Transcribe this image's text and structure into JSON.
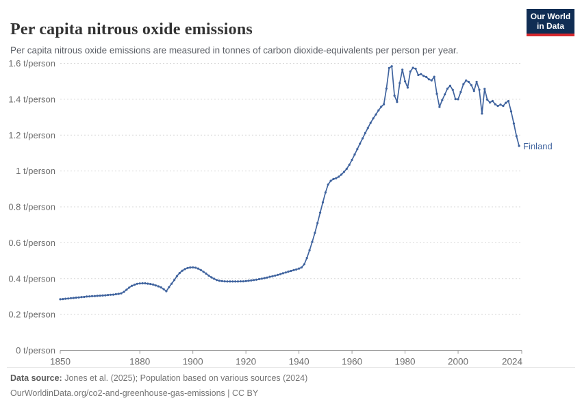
{
  "header": {
    "title": "Per capita nitrous oxide emissions",
    "subtitle": "Per capita nitrous oxide emissions are measured in tonnes of carbon dioxide-equivalents per person per year.",
    "logo_line1": "Our World",
    "logo_line2": "in Data"
  },
  "chart_data": {
    "type": "line",
    "title": "Per capita nitrous oxide emissions",
    "unit": "t/person",
    "xlim": [
      1850,
      2024
    ],
    "ylim": [
      0,
      1.6
    ],
    "grid": "horizontal-dashed",
    "legend_position": "end-of-line-label",
    "x_ticks": [
      {
        "value": 1850,
        "label": "1850"
      },
      {
        "value": 1880,
        "label": "1880"
      },
      {
        "value": 1900,
        "label": "1900"
      },
      {
        "value": 1920,
        "label": "1920"
      },
      {
        "value": 1940,
        "label": "1940"
      },
      {
        "value": 1960,
        "label": "1960"
      },
      {
        "value": 1980,
        "label": "1980"
      },
      {
        "value": 2000,
        "label": "2000"
      },
      {
        "value": 2024,
        "label": "2024"
      }
    ],
    "y_ticks": [
      {
        "value": 0,
        "label": "0 t/person"
      },
      {
        "value": 0.2,
        "label": "0.2 t/person"
      },
      {
        "value": 0.4,
        "label": "0.4 t/person"
      },
      {
        "value": 0.6,
        "label": "0.6 t/person"
      },
      {
        "value": 0.8,
        "label": "0.8 t/person"
      },
      {
        "value": 1,
        "label": "1 t/person"
      },
      {
        "value": 1.2,
        "label": "1.2 t/person"
      },
      {
        "value": 1.4,
        "label": "1.4 t/person"
      },
      {
        "value": 1.6,
        "label": "1.6 t/person"
      }
    ],
    "series": [
      {
        "name": "Finland",
        "start_year": 1850,
        "end_year": 2023,
        "values": [
          0.285,
          0.286,
          0.288,
          0.289,
          0.291,
          0.292,
          0.294,
          0.295,
          0.297,
          0.298,
          0.3,
          0.301,
          0.302,
          0.303,
          0.304,
          0.305,
          0.306,
          0.307,
          0.309,
          0.31,
          0.311,
          0.313,
          0.315,
          0.318,
          0.326,
          0.338,
          0.35,
          0.36,
          0.366,
          0.371,
          0.373,
          0.374,
          0.374,
          0.372,
          0.37,
          0.367,
          0.362,
          0.357,
          0.351,
          0.341,
          0.33,
          0.352,
          0.372,
          0.392,
          0.414,
          0.431,
          0.444,
          0.453,
          0.459,
          0.462,
          0.463,
          0.461,
          0.456,
          0.448,
          0.438,
          0.428,
          0.417,
          0.407,
          0.399,
          0.392,
          0.388,
          0.386,
          0.385,
          0.384,
          0.384,
          0.384,
          0.384,
          0.384,
          0.385,
          0.385,
          0.386,
          0.388,
          0.39,
          0.392,
          0.394,
          0.397,
          0.4,
          0.403,
          0.406,
          0.41,
          0.413,
          0.417,
          0.421,
          0.425,
          0.43,
          0.434,
          0.439,
          0.443,
          0.447,
          0.451,
          0.456,
          0.463,
          0.48,
          0.515,
          0.558,
          0.605,
          0.655,
          0.71,
          0.768,
          0.825,
          0.88,
          0.925,
          0.945,
          0.955,
          0.96,
          0.968,
          0.98,
          0.995,
          1.012,
          1.035,
          1.062,
          1.092,
          1.122,
          1.152,
          1.182,
          1.212,
          1.24,
          1.268,
          1.293,
          1.315,
          1.338,
          1.358,
          1.372,
          1.46,
          1.574,
          1.584,
          1.42,
          1.385,
          1.49,
          1.565,
          1.5,
          1.465,
          1.555,
          1.575,
          1.57,
          1.535,
          1.54,
          1.53,
          1.524,
          1.511,
          1.505,
          1.525,
          1.43,
          1.357,
          1.395,
          1.427,
          1.459,
          1.475,
          1.452,
          1.401,
          1.4,
          1.44,
          1.484,
          1.504,
          1.497,
          1.478,
          1.446,
          1.497,
          1.453,
          1.32,
          1.458,
          1.398,
          1.382,
          1.39,
          1.372,
          1.363,
          1.37,
          1.363,
          1.38,
          1.39,
          1.332,
          1.265,
          1.195,
          1.14
        ]
      }
    ],
    "series_label": "Finland"
  },
  "footer": {
    "source_label": "Data source:",
    "source_text": " Jones et al. (2025); Population based on various sources (2024)",
    "link_text": "OurWorldinData.org/co2-and-greenhouse-gas-emissions",
    "license_sep": " | ",
    "license_text": "CC BY"
  },
  "colors": {
    "line": "#3f639e",
    "series_label": "#3f639e",
    "grid": "#d9d9d9",
    "axis": "#999999",
    "tick_text": "#6e6e6e",
    "logo_bg": "#102d54",
    "logo_red": "#d6282d"
  }
}
